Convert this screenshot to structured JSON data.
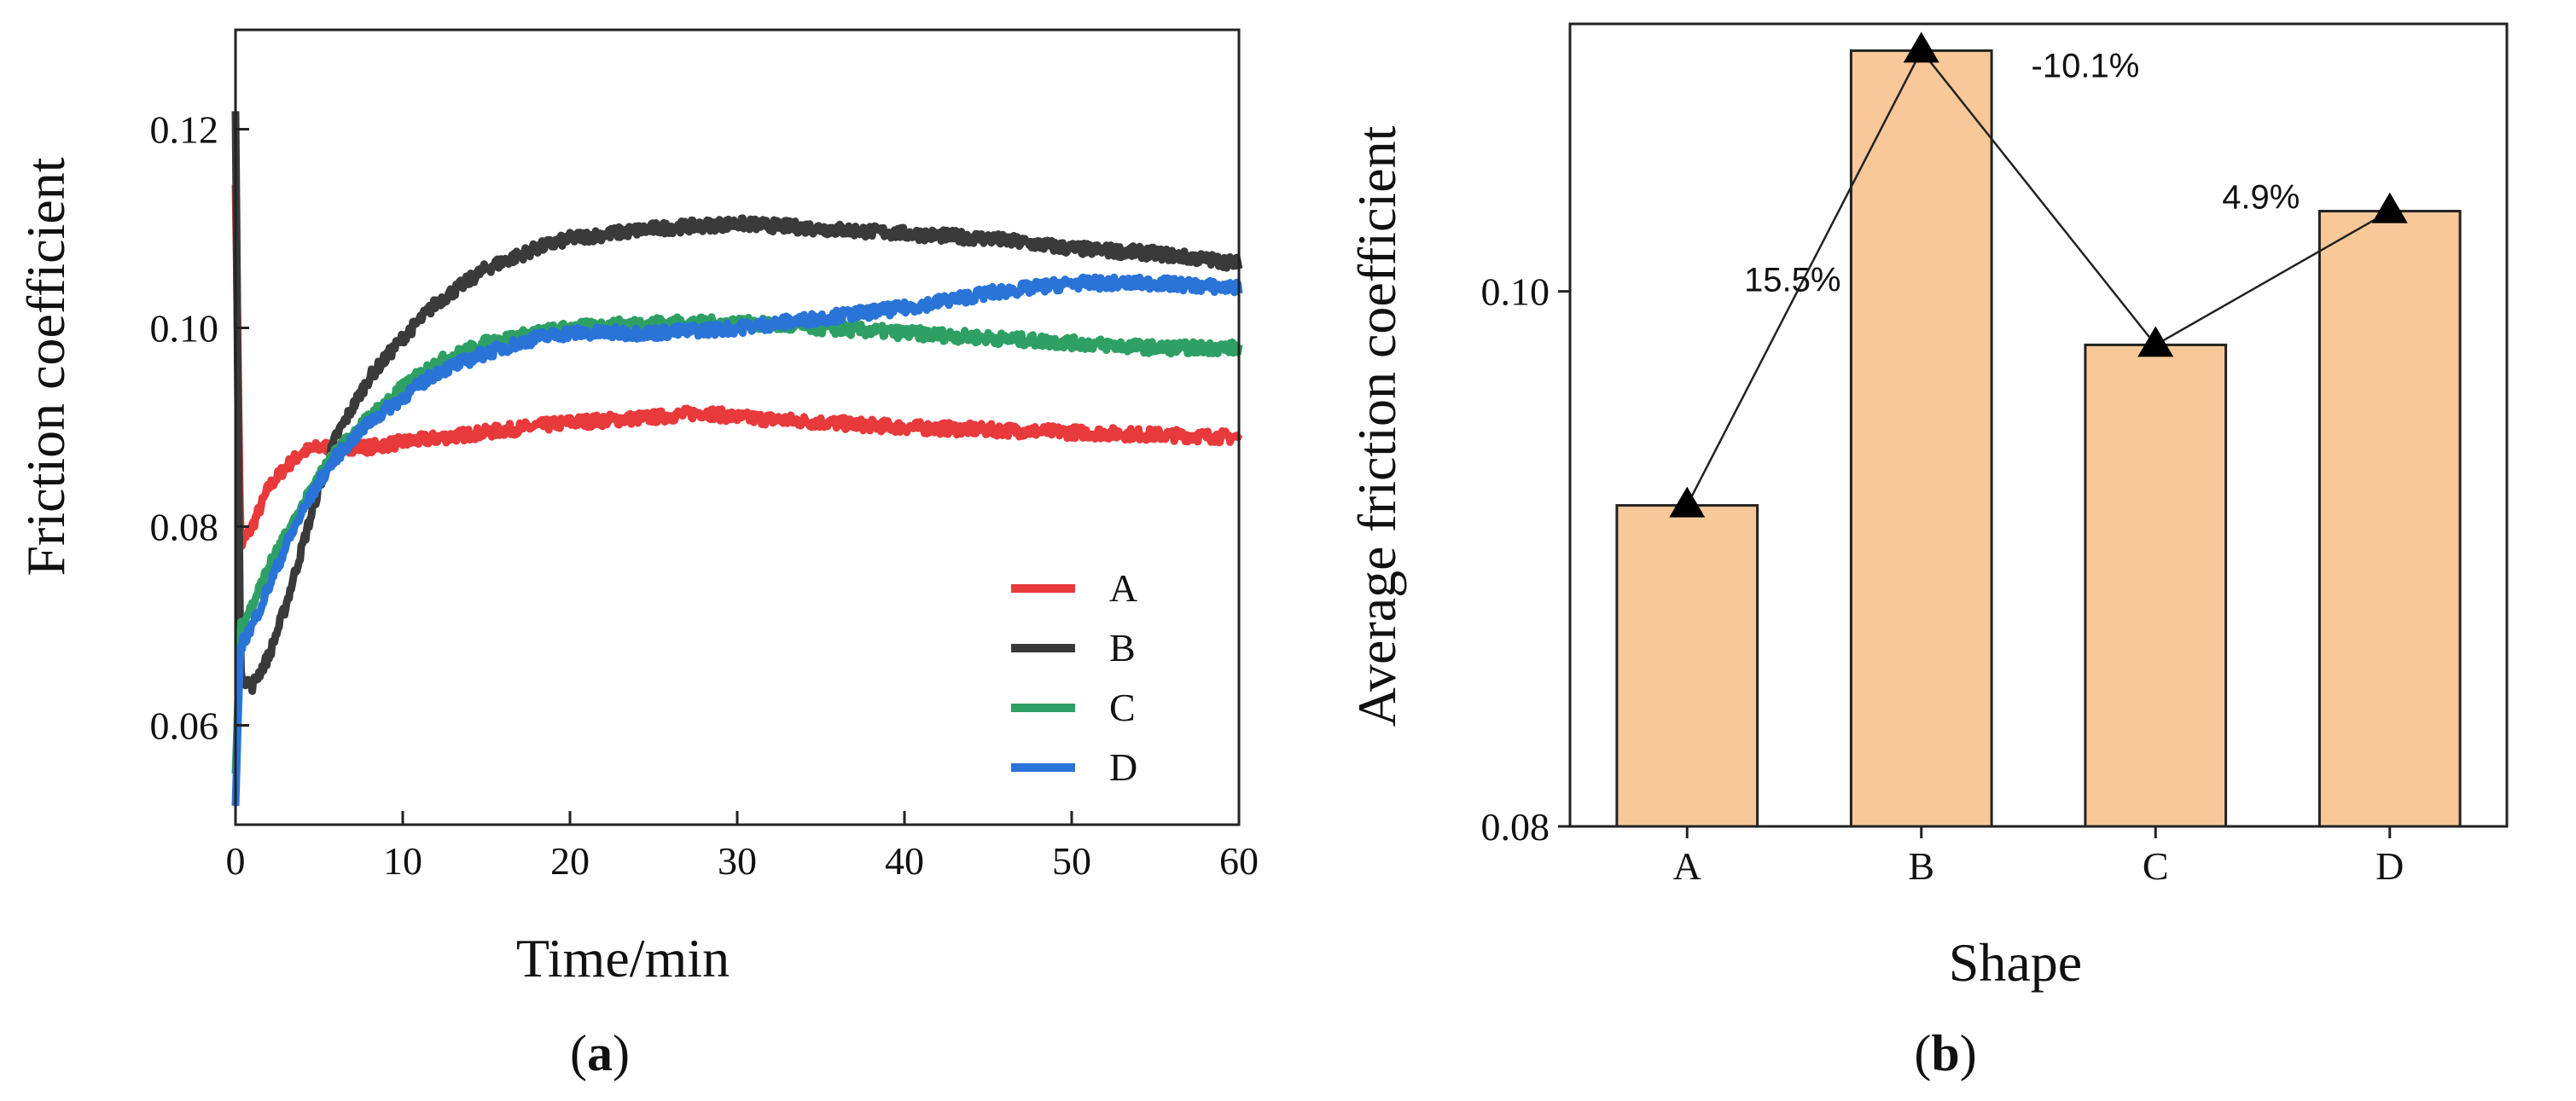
{
  "chart_data": [
    {
      "panel": "(a)",
      "panel_letter": "a",
      "type": "line",
      "xlabel": "Time/min",
      "ylabel": "Friction coefficient",
      "xlim": [
        0,
        60
      ],
      "ylim": [
        0.05,
        0.13
      ],
      "xticks": [
        0,
        10,
        20,
        30,
        40,
        50,
        60
      ],
      "yticks": [
        0.06,
        0.08,
        0.1,
        0.12
      ],
      "ytick_labels": [
        "0.06",
        "0.08",
        "0.10",
        "0.12"
      ],
      "legend_position": "bottom-right",
      "series": [
        {
          "name": "A",
          "color": "#e8393b",
          "points": [
            [
              0,
              0.115
            ],
            [
              0.3,
              0.078
            ],
            [
              1,
              0.08
            ],
            [
              2,
              0.084
            ],
            [
              3,
              0.086
            ],
            [
              4,
              0.0875
            ],
            [
              5,
              0.088
            ],
            [
              8,
              0.088
            ],
            [
              10,
              0.0885
            ],
            [
              15,
              0.0895
            ],
            [
              20,
              0.0905
            ],
            [
              25,
              0.091
            ],
            [
              28,
              0.0915
            ],
            [
              30,
              0.091
            ],
            [
              40,
              0.09
            ],
            [
              50,
              0.0895
            ],
            [
              60,
              0.089
            ]
          ]
        },
        {
          "name": "B",
          "color": "#3a3a3a",
          "points": [
            [
              0,
              0.122
            ],
            [
              0.3,
              0.065
            ],
            [
              1,
              0.064
            ],
            [
              2,
              0.067
            ],
            [
              3,
              0.072
            ],
            [
              4,
              0.078
            ],
            [
              5,
              0.084
            ],
            [
              6,
              0.089
            ],
            [
              8,
              0.095
            ],
            [
              10,
              0.099
            ],
            [
              12,
              0.1025
            ],
            [
              15,
              0.106
            ],
            [
              18,
              0.108
            ],
            [
              20,
              0.109
            ],
            [
              25,
              0.11
            ],
            [
              30,
              0.1105
            ],
            [
              35,
              0.11
            ],
            [
              40,
              0.1095
            ],
            [
              45,
              0.109
            ],
            [
              50,
              0.108
            ],
            [
              55,
              0.1075
            ],
            [
              60,
              0.1065
            ]
          ]
        },
        {
          "name": "C",
          "color": "#2ea063",
          "points": [
            [
              0,
              0.055
            ],
            [
              0.3,
              0.07
            ],
            [
              1,
              0.072
            ],
            [
              2,
              0.076
            ],
            [
              3,
              0.079
            ],
            [
              4,
              0.082
            ],
            [
              5,
              0.085
            ],
            [
              6,
              0.0875
            ],
            [
              8,
              0.091
            ],
            [
              10,
              0.094
            ],
            [
              12,
              0.0965
            ],
            [
              15,
              0.0985
            ],
            [
              18,
              0.0995
            ],
            [
              20,
              0.1
            ],
            [
              25,
              0.1005
            ],
            [
              30,
              0.1005
            ],
            [
              35,
              0.1
            ],
            [
              40,
              0.0995
            ],
            [
              45,
              0.099
            ],
            [
              50,
              0.0985
            ],
            [
              55,
              0.098
            ],
            [
              60,
              0.098
            ]
          ]
        },
        {
          "name": "D",
          "color": "#2a74d8",
          "points": [
            [
              0,
              0.052
            ],
            [
              0.3,
              0.068
            ],
            [
              1,
              0.07
            ],
            [
              2,
              0.074
            ],
            [
              3,
              0.078
            ],
            [
              4,
              0.0815
            ],
            [
              5,
              0.0845
            ],
            [
              6,
              0.087
            ],
            [
              8,
              0.0905
            ],
            [
              10,
              0.093
            ],
            [
              12,
              0.0955
            ],
            [
              15,
              0.0975
            ],
            [
              18,
              0.099
            ],
            [
              20,
              0.0995
            ],
            [
              25,
              0.0995
            ],
            [
              30,
              0.1
            ],
            [
              35,
              0.101
            ],
            [
              40,
              0.102
            ],
            [
              45,
              0.1035
            ],
            [
              50,
              0.1045
            ],
            [
              55,
              0.1045
            ],
            [
              60,
              0.104
            ]
          ]
        }
      ]
    },
    {
      "panel": "(b)",
      "panel_letter": "b",
      "type": "bar",
      "xlabel": "Shape",
      "ylabel": "Average friction coefficient",
      "categories": [
        "A",
        "B",
        "C",
        "D"
      ],
      "values": [
        0.092,
        0.109,
        0.098,
        0.103
      ],
      "ylim": [
        0.08,
        0.11
      ],
      "yticks": [
        0.08,
        0.1
      ],
      "ytick_labels": [
        "0.08",
        "0.10"
      ],
      "bar_color": "#f8c899",
      "bar_edge_color": "#222222",
      "marker": "triangle",
      "annotations": [
        {
          "text": "15.5%",
          "x": 0.45,
          "y": 0.1
        },
        {
          "text": "-10.1%",
          "x": 1.7,
          "y": 0.108
        },
        {
          "text": "4.9%",
          "x": 2.45,
          "y": 0.1031
        }
      ]
    }
  ]
}
